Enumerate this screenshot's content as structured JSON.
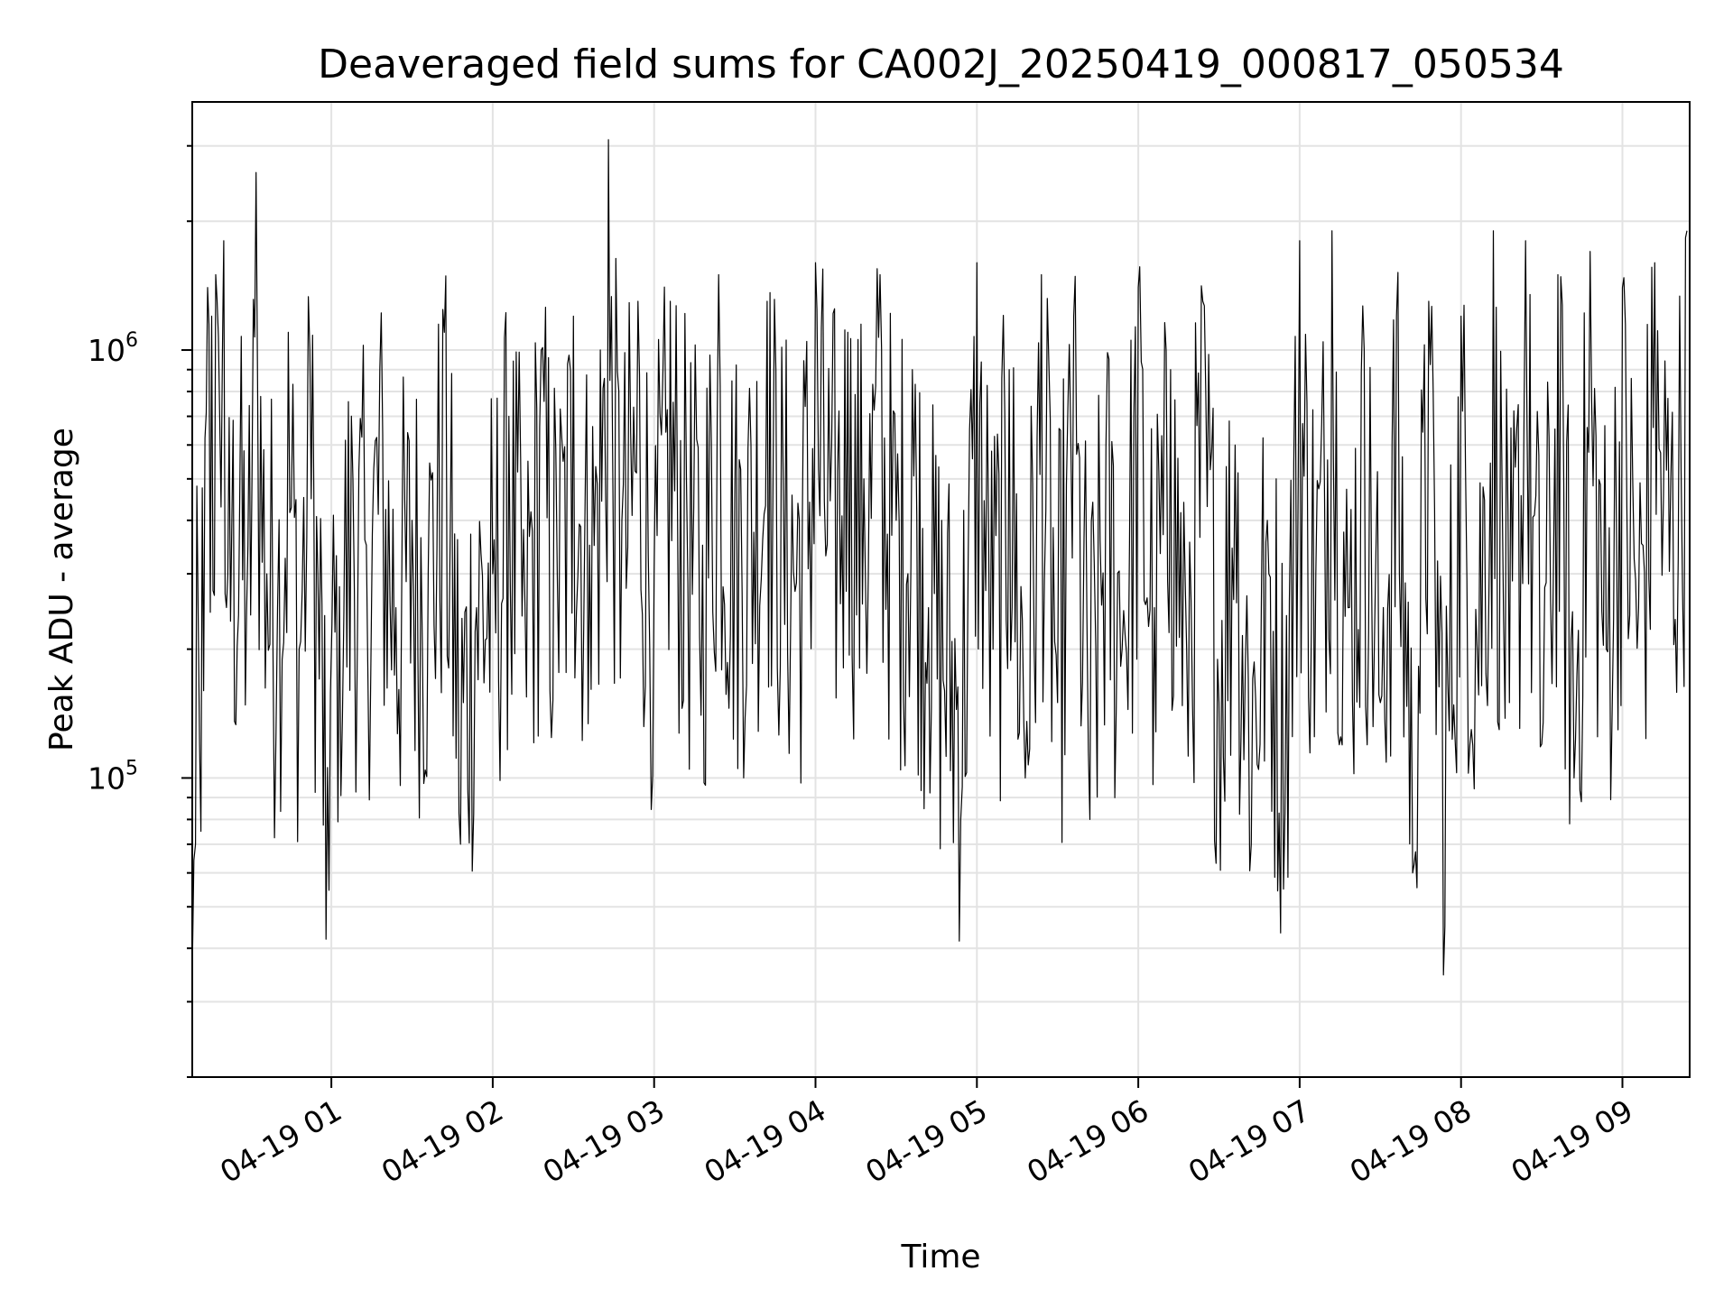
{
  "chart_data": {
    "type": "line",
    "title": "Deaveraged field sums for CA002J_20250419_000817_050534",
    "xlabel": "Time",
    "ylabel": "Peak ADU - average",
    "yscale": "log",
    "ylim": [
      20000,
      3800000
    ],
    "xlim": [
      "2025-04-19 00:08:17",
      "2025-04-19 09:25:00"
    ],
    "grid": true,
    "line_color": "#000000",
    "x_ticks": [
      "04-19 01",
      "04-19 02",
      "04-19 03",
      "04-19 04",
      "04-19 05",
      "04-19 06",
      "04-19 07",
      "04-19 08",
      "04-19 09"
    ],
    "y_ticks": [
      {
        "base": "10",
        "exp": "5",
        "value": 100000
      },
      {
        "base": "10",
        "exp": "6",
        "value": 1000000
      }
    ],
    "series": [
      {
        "x": [
          "2025-04-19 00:08:17",
          "2025-04-19 00:09:30",
          "2025-04-19 00:11:00",
          "2025-04-19 00:12:30",
          "2025-04-19 00:14:00",
          "2025-04-19 00:15:30",
          "2025-04-19 00:17:00",
          "2025-04-19 00:18:30",
          "2025-04-19 00:20:00",
          "2025-04-19 00:21:30",
          "2025-04-19 00:23:00",
          "2025-04-19 00:26:00",
          "2025-04-19 00:29:00",
          "2025-04-19 00:32:00",
          "2025-04-19 00:36:00",
          "2025-04-19 00:40:00",
          "2025-04-19 00:44:00",
          "2025-04-19 00:48:00",
          "2025-04-19 00:52:00",
          "2025-04-19 00:55:00",
          "2025-04-19 00:58:00",
          "2025-04-19 01:03:00",
          "2025-04-19 01:08:00",
          "2025-04-19 01:13:00",
          "2025-04-19 01:18:00",
          "2025-04-19 01:24:00",
          "2025-04-19 01:30:00",
          "2025-04-19 01:36:00",
          "2025-04-19 01:42:00",
          "2025-04-19 01:48:00",
          "2025-04-19 01:54:00",
          "2025-04-19 02:00:00",
          "2025-04-19 02:06:00",
          "2025-04-19 02:12:00",
          "2025-04-19 02:18:00",
          "2025-04-19 02:24:00",
          "2025-04-19 02:30:00",
          "2025-04-19 02:36:00",
          "2025-04-19 02:40:00",
          "2025-04-19 02:43:00",
          "2025-04-19 02:48:00",
          "2025-04-19 02:54:00",
          "2025-04-19 03:00:00",
          "2025-04-19 03:06:00",
          "2025-04-19 03:12:00",
          "2025-04-19 03:18:00",
          "2025-04-19 03:24:00",
          "2025-04-19 03:30:00",
          "2025-04-19 03:36:00",
          "2025-04-19 03:42:00",
          "2025-04-19 03:48:00",
          "2025-04-19 03:54:00",
          "2025-04-19 04:00:00",
          "2025-04-19 04:06:00",
          "2025-04-19 04:12:00",
          "2025-04-19 04:18:00",
          "2025-04-19 04:24:00",
          "2025-04-19 04:30:00",
          "2025-04-19 04:36:00",
          "2025-04-19 04:42:00",
          "2025-04-19 04:48:00",
          "2025-04-19 04:54:00",
          "2025-04-19 05:00:00",
          "2025-04-19 05:06:00",
          "2025-04-19 05:12:00",
          "2025-04-19 05:18:00",
          "2025-04-19 05:24:00",
          "2025-04-19 05:30:00",
          "2025-04-19 05:36:00",
          "2025-04-19 05:42:00",
          "2025-04-19 05:48:00",
          "2025-04-19 05:54:00",
          "2025-04-19 06:00:00",
          "2025-04-19 06:06:00",
          "2025-04-19 06:12:00",
          "2025-04-19 06:18:00",
          "2025-04-19 06:24:00",
          "2025-04-19 06:30:00",
          "2025-04-19 06:36:00",
          "2025-04-19 06:42:00",
          "2025-04-19 06:48:00",
          "2025-04-19 06:54:00",
          "2025-04-19 07:00:00",
          "2025-04-19 07:06:00",
          "2025-04-19 07:12:00",
          "2025-04-19 07:18:00",
          "2025-04-19 07:24:00",
          "2025-04-19 07:30:00",
          "2025-04-19 07:36:00",
          "2025-04-19 07:42:00",
          "2025-04-19 07:48:00",
          "2025-04-19 07:54:00",
          "2025-04-19 08:00:00",
          "2025-04-19 08:06:00",
          "2025-04-19 08:12:00",
          "2025-04-19 08:18:00",
          "2025-04-19 08:24:00",
          "2025-04-19 08:30:00",
          "2025-04-19 08:36:00",
          "2025-04-19 08:42:00",
          "2025-04-19 08:48:00",
          "2025-04-19 08:54:00",
          "2025-04-19 09:00:00",
          "2025-04-19 09:06:00",
          "2025-04-19 09:12:00",
          "2025-04-19 09:18:00",
          "2025-04-19 09:24:00"
        ],
        "y": [
          35000,
          70000,
          120000,
          160000,
          1400000,
          1200000,
          1500000,
          700000,
          1800000,
          300000,
          400000,
          500000,
          350000,
          2600000,
          300000,
          250000,
          1100000,
          200000,
          1000000,
          300000,
          42000,
          280000,
          500000,
          350000,
          900000,
          250000,
          400000,
          300000,
          1100000,
          70000,
          250000,
          300000,
          700000,
          250000,
          1000000,
          300000,
          1200000,
          350000,
          1000000,
          3100000,
          400000,
          1300000,
          300000,
          1300000,
          500000,
          350000,
          1500000,
          450000,
          600000,
          1300000,
          500000,
          400000,
          1600000,
          600000,
          1100000,
          500000,
          1500000,
          400000,
          900000,
          250000,
          160000,
          80000,
          1600000,
          200000,
          900000,
          100000,
          1500000,
          150000,
          1200000,
          80000,
          600000,
          200000,
          1400000,
          250000,
          900000,
          200000,
          1300000,
          150000,
          600000,
          70000,
          400000,
          55000,
          1800000,
          300000,
          1900000,
          250000,
          1000000,
          150000,
          1200000,
          60000,
          1300000,
          45000,
          1200000,
          200000,
          1900000,
          150000,
          1800000,
          120000,
          1500000,
          100000,
          1700000,
          200000,
          1400000,
          250000,
          1600000,
          500000,
          1900000
        ]
      }
    ]
  }
}
